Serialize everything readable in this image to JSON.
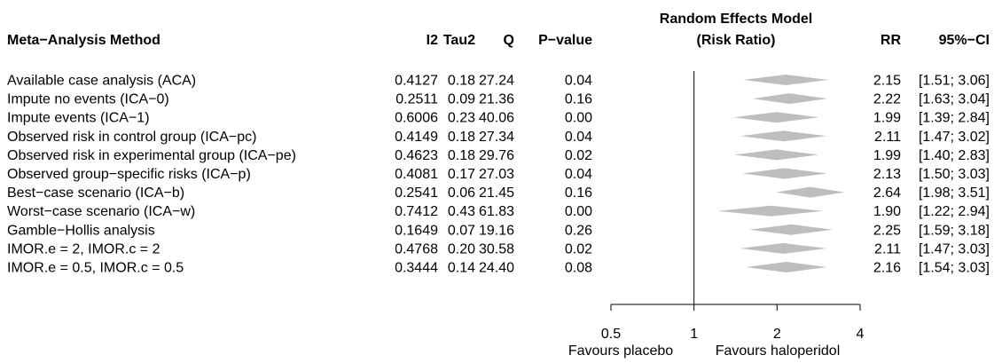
{
  "chart_data": {
    "type": "forest",
    "header": {
      "method": "Meta−Analysis Method",
      "i2": "I2",
      "tau2": "Tau2",
      "q": "Q",
      "pvalue": "P−value",
      "model_line1": "Random Effects Model",
      "model_line2": "(Risk Ratio)",
      "rr": "RR",
      "ci": "95%−CI"
    },
    "rows": [
      {
        "label": "Available case analysis (ACA)",
        "i2": "0.4127",
        "tau2": "0.18",
        "q": "27.24",
        "p": "0.04",
        "rr": 2.15,
        "lower": 1.51,
        "upper": 3.06,
        "rr_text": "2.15",
        "ci_text": "[1.51; 3.06]"
      },
      {
        "label": "Impute no events (ICA−0)",
        "i2": "0.2511",
        "tau2": "0.09",
        "q": "21.36",
        "p": "0.16",
        "rr": 2.22,
        "lower": 1.63,
        "upper": 3.04,
        "rr_text": "2.22",
        "ci_text": "[1.63; 3.04]"
      },
      {
        "label": "Impute events (ICA−1)",
        "i2": "0.6006",
        "tau2": "0.23",
        "q": "40.06",
        "p": "0.00",
        "rr": 1.99,
        "lower": 1.39,
        "upper": 2.84,
        "rr_text": "1.99",
        "ci_text": "[1.39; 2.84]"
      },
      {
        "label": "Observed risk in control group (ICA−pc)",
        "i2": "0.4149",
        "tau2": "0.18",
        "q": "27.34",
        "p": "0.04",
        "rr": 2.11,
        "lower": 1.47,
        "upper": 3.02,
        "rr_text": "2.11",
        "ci_text": "[1.47; 3.02]"
      },
      {
        "label": "Observed risk in experimental group (ICA−pe)",
        "i2": "0.4623",
        "tau2": "0.18",
        "q": "29.76",
        "p": "0.02",
        "rr": 1.99,
        "lower": 1.4,
        "upper": 2.83,
        "rr_text": "1.99",
        "ci_text": "[1.40; 2.83]"
      },
      {
        "label": "Observed group−specific risks (ICA−p)",
        "i2": "0.4081",
        "tau2": "0.17",
        "q": "27.03",
        "p": "0.04",
        "rr": 2.13,
        "lower": 1.5,
        "upper": 3.03,
        "rr_text": "2.13",
        "ci_text": "[1.50; 3.03]"
      },
      {
        "label": "Best−case scenario (ICA−b)",
        "i2": "0.2541",
        "tau2": "0.06",
        "q": "21.45",
        "p": "0.16",
        "rr": 2.64,
        "lower": 1.98,
        "upper": 3.51,
        "rr_text": "2.64",
        "ci_text": "[1.98; 3.51]"
      },
      {
        "label": "Worst−case scenario (ICA−w)",
        "i2": "0.7412",
        "tau2": "0.43",
        "q": "61.83",
        "p": "0.00",
        "rr": 1.9,
        "lower": 1.22,
        "upper": 2.94,
        "rr_text": "1.90",
        "ci_text": "[1.22; 2.94]"
      },
      {
        "label": "Gamble−Hollis analysis",
        "i2": "0.1649",
        "tau2": "0.07",
        "q": "19.16",
        "p": "0.26",
        "rr": 2.25,
        "lower": 1.59,
        "upper": 3.18,
        "rr_text": "2.25",
        "ci_text": "[1.59; 3.18]"
      },
      {
        "label": "IMOR.e = 2, IMOR.c = 2",
        "i2": "0.4768",
        "tau2": "0.20",
        "q": "30.58",
        "p": "0.02",
        "rr": 2.11,
        "lower": 1.47,
        "upper": 3.03,
        "rr_text": "2.11",
        "ci_text": "[1.47; 3.03]"
      },
      {
        "label": "IMOR.e = 0.5, IMOR.c = 0.5",
        "i2": "0.3444",
        "tau2": "0.14",
        "q": "24.40",
        "p": "0.08",
        "rr": 2.16,
        "lower": 1.54,
        "upper": 3.03,
        "rr_text": "2.16",
        "ci_text": "[1.54; 3.03]"
      }
    ],
    "x_scale": "log",
    "xlim": [
      0.5,
      4
    ],
    "x_ticks": [
      0.5,
      1,
      2,
      4
    ],
    "x_tick_labels": [
      "0.5",
      "1",
      "2",
      "4"
    ],
    "reference_line": 1,
    "favours_left": "Favours placebo",
    "favours_right": "Favours haloperidol",
    "diamond_color": "#bebebe"
  }
}
